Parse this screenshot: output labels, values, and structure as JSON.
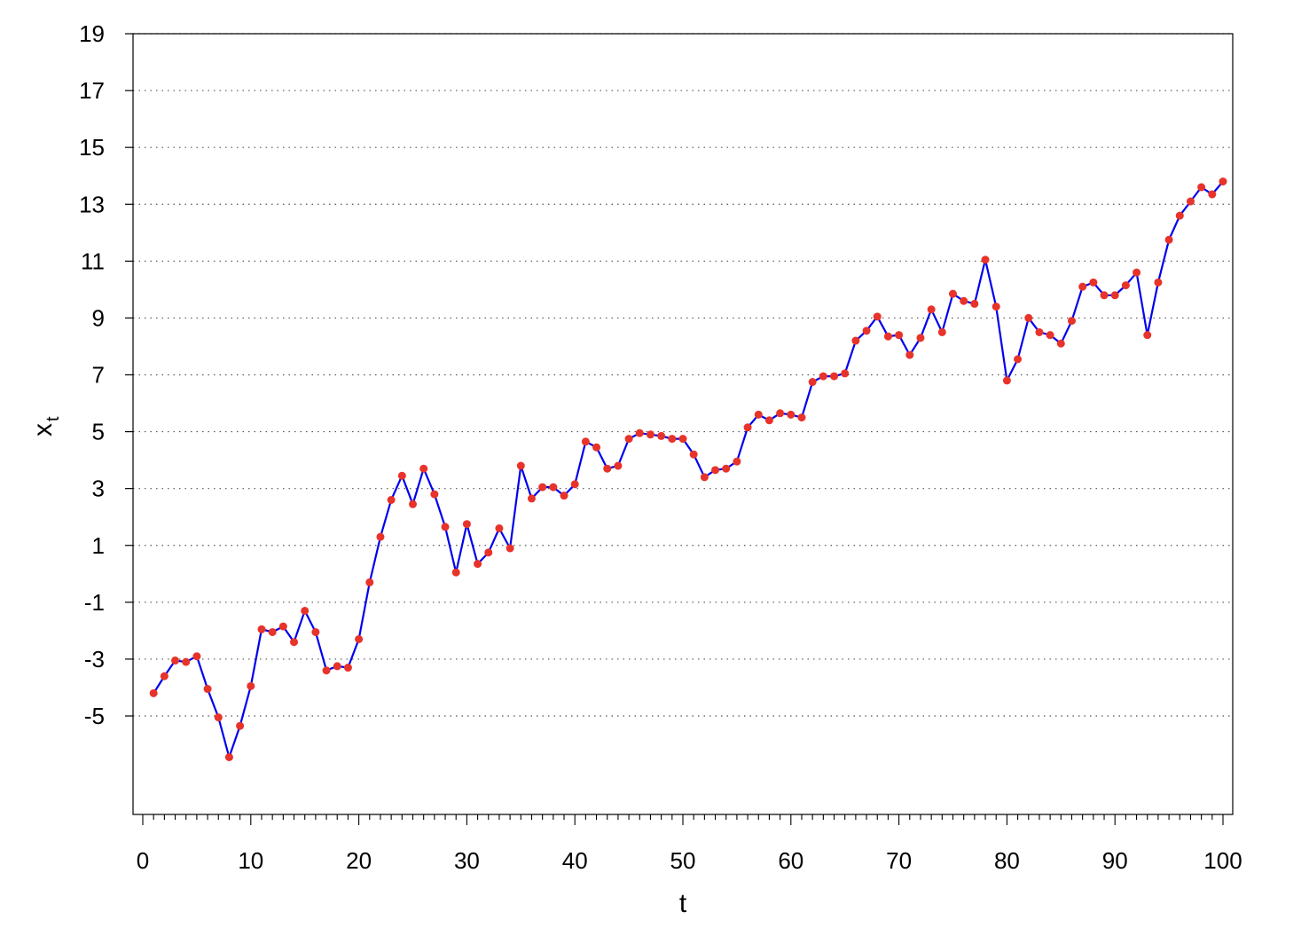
{
  "chart_data": {
    "type": "line",
    "title": "",
    "xlabel": "t",
    "ylabel": {
      "main": "x",
      "subscript": "t"
    },
    "xlim": [
      0,
      100
    ],
    "ylim": [
      -7,
      19
    ],
    "xticks": [
      "0",
      "10",
      "20",
      "30",
      "40",
      "50",
      "60",
      "70",
      "80",
      "90",
      "100"
    ],
    "yticks": [
      "-5",
      "-3",
      "-1",
      "1",
      "3",
      "5",
      "7",
      "9",
      "11",
      "13",
      "15",
      "17",
      "19"
    ],
    "grid": "horizontal dotted",
    "colors": {
      "line": "#0000ee",
      "points": "#e8332a"
    },
    "series": [
      {
        "x": [
          1,
          2,
          3,
          4,
          5,
          6,
          7,
          8,
          9,
          10,
          11,
          12,
          13,
          14,
          15,
          16,
          17,
          18,
          19,
          20,
          21,
          22,
          23,
          24,
          25,
          26,
          27,
          28,
          29,
          30,
          31,
          32,
          33,
          34,
          35,
          36,
          37,
          38,
          39,
          40,
          41,
          42,
          43,
          44,
          45,
          46,
          47,
          48,
          49,
          50,
          51,
          52,
          53,
          54,
          55,
          56,
          57,
          58,
          59,
          60,
          61,
          62,
          63,
          64,
          65,
          66,
          67,
          68,
          69,
          70,
          71,
          72,
          73,
          74,
          75,
          76,
          77,
          78,
          79,
          80,
          81,
          82,
          83,
          84,
          85,
          86,
          87,
          88,
          89,
          90,
          91,
          92,
          93,
          94,
          95,
          96,
          97,
          98,
          99,
          100
        ],
        "y": [
          -4.2,
          -3.6,
          -3.05,
          -3.1,
          -2.9,
          -4.05,
          -5.05,
          -6.45,
          -5.35,
          -3.95,
          -1.95,
          -2.05,
          -1.85,
          -2.4,
          -1.3,
          -2.05,
          -3.4,
          -3.25,
          -3.3,
          -2.3,
          -0.3,
          1.3,
          2.6,
          3.45,
          2.45,
          3.7,
          2.8,
          1.65,
          0.05,
          1.75,
          0.35,
          0.75,
          1.6,
          0.9,
          3.8,
          2.65,
          3.05,
          3.05,
          2.75,
          3.15,
          4.65,
          4.45,
          3.7,
          3.8,
          4.75,
          4.95,
          4.9,
          4.85,
          4.75,
          4.75,
          4.2,
          3.4,
          3.65,
          3.7,
          3.95,
          5.15,
          5.6,
          5.4,
          5.65,
          5.6,
          5.5,
          6.75,
          6.95,
          6.95,
          7.05,
          8.2,
          8.55,
          9.05,
          8.35,
          8.4,
          7.7,
          8.3,
          9.3,
          8.5,
          9.85,
          9.6,
          9.5,
          11.05,
          9.4,
          6.8,
          7.55,
          9.0,
          8.5,
          8.4,
          8.1,
          8.9,
          10.1,
          10.25,
          9.8,
          9.8,
          10.15,
          10.6,
          8.4,
          10.25,
          11.75,
          12.6,
          13.1,
          13.6,
          13.35,
          13.8
        ]
      }
    ]
  }
}
